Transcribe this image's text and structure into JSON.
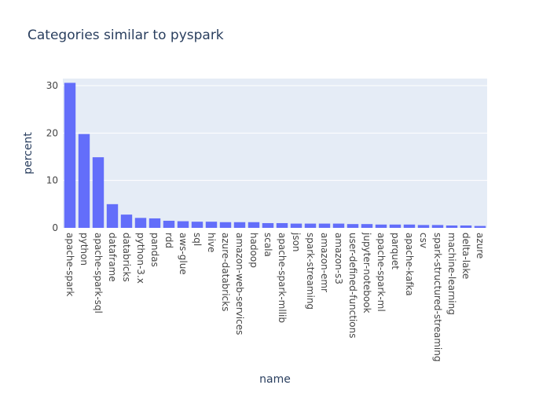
{
  "chart_data": {
    "type": "bar",
    "title": "Categories similar to pyspark",
    "xlabel": "name",
    "ylabel": "percent",
    "ylim": [
      0,
      31.5
    ],
    "yticks": [
      0,
      10,
      20,
      30
    ],
    "grid": true,
    "colors": {
      "bar": "#636efa",
      "plot_bg": "#e5ecf6",
      "grid": "#ffffff",
      "text": "#2a3f5f",
      "tick_text": "#444444"
    },
    "categories": [
      "apache-spark",
      "python",
      "apache-spark-sql",
      "dataframe",
      "databricks",
      "python-3.x",
      "pandas",
      "rdd",
      "aws-glue",
      "sql",
      "hive",
      "azure-databricks",
      "amazon-web-services",
      "hadoop",
      "scala",
      "apache-spark-mllib",
      "json",
      "spark-streaming",
      "amazon-emr",
      "amazon-s3",
      "user-defined-functions",
      "jupyter-notebook",
      "apache-spark-ml",
      "parquet",
      "apache-kafka",
      "csv",
      "spark-structured-streaming",
      "machine-learning",
      "delta-lake",
      "azure"
    ],
    "values": [
      30.6,
      19.8,
      14.9,
      5.0,
      2.8,
      2.1,
      2.0,
      1.5,
      1.4,
      1.3,
      1.3,
      1.2,
      1.2,
      1.2,
      1.0,
      1.0,
      0.9,
      0.9,
      0.9,
      0.9,
      0.8,
      0.8,
      0.7,
      0.7,
      0.7,
      0.6,
      0.6,
      0.5,
      0.5,
      0.4
    ]
  }
}
